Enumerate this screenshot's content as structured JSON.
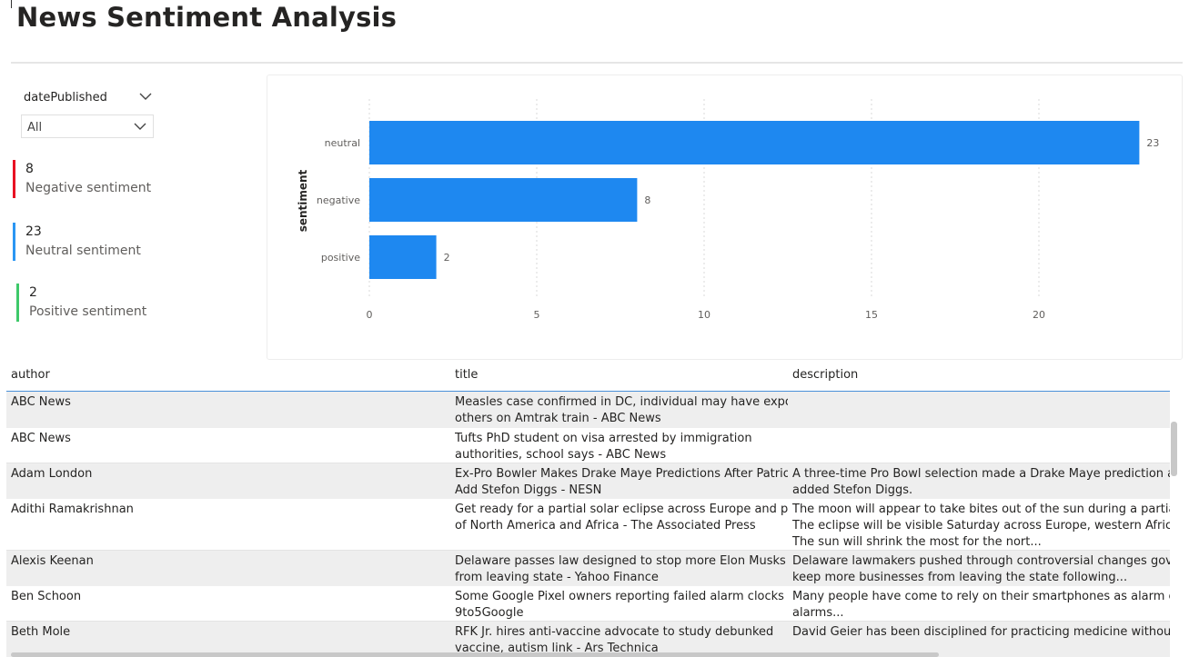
{
  "page": {
    "title": "News Sentiment Analysis"
  },
  "slicer": {
    "field_label": "datePublished",
    "selected_value": "All"
  },
  "kpis": [
    {
      "value": "8",
      "label": "Negative sentiment",
      "color": "#e81123"
    },
    {
      "value": "23",
      "label": "Neutral sentiment",
      "color": "#2b96f3"
    },
    {
      "value": "2",
      "label": "Positive sentiment",
      "color": "#3ec96a"
    }
  ],
  "chart_data": {
    "type": "bar",
    "orientation": "horizontal",
    "ylabel": "sentiment",
    "xlabel": "",
    "categories": [
      "neutral",
      "negative",
      "positive"
    ],
    "values": [
      23,
      8,
      2
    ],
    "data_labels": [
      "23",
      "8",
      "2"
    ],
    "xticks": [
      "0",
      "5",
      "10",
      "15",
      "20"
    ],
    "xlim": [
      0,
      23
    ],
    "bar_color": "#1e88f0",
    "grid": "vertical dotted"
  },
  "table": {
    "columns": [
      "author",
      "title",
      "description"
    ],
    "rows": [
      {
        "author": "ABC News",
        "title": [
          "Measles case confirmed in DC, individual may have exposed",
          "others on Amtrak train - ABC News"
        ],
        "description": []
      },
      {
        "author": "ABC News",
        "title": [
          "Tufts PhD student on visa arrested by immigration",
          "authorities, school says - ABC News"
        ],
        "description": []
      },
      {
        "author": "Adam London",
        "title": [
          "Ex-Pro Bowler Makes Drake Maye Predictions After Patriots",
          "Add Stefon Diggs - NESN"
        ],
        "description": [
          "A three-time Pro Bowl selection made a Drake Maye prediction after the Patriots",
          "added Stefon Diggs."
        ]
      },
      {
        "author": "Adithi Ramakrishnan",
        "title": [
          "Get ready for a partial solar eclipse across Europe and parts",
          "of North America and Africa - The Associated Press"
        ],
        "description": [
          "The moon will appear to take bites out of the sun during a partial solar eclipse.",
          "The eclipse will be visible Saturday across Europe, western Africa, eastern",
          "The sun will shrink the most for the nort..."
        ]
      },
      {
        "author": "Alexis Keenan",
        "title": [
          "Delaware passes law designed to stop more Elon Musks",
          "from leaving state - Yahoo Finance"
        ],
        "description": [
          "Delaware lawmakers pushed through controversial changes governing",
          "keep more businesses from leaving the state following..."
        ]
      },
      {
        "author": "Ben Schoon",
        "title": [
          "Some Google Pixel owners reporting failed alarm clocks -",
          "9to5Google"
        ],
        "description": [
          "Many people have come to rely on their smartphones as alarm clocks",
          "alarms..."
        ]
      },
      {
        "author": "Beth Mole",
        "title": [
          "RFK Jr. hires anti-vaccine advocate to study debunked",
          "vaccine, autism link - Ars Technica"
        ],
        "description": [
          "David Geier has been disciplined for practicing medicine without a license"
        ]
      }
    ]
  }
}
